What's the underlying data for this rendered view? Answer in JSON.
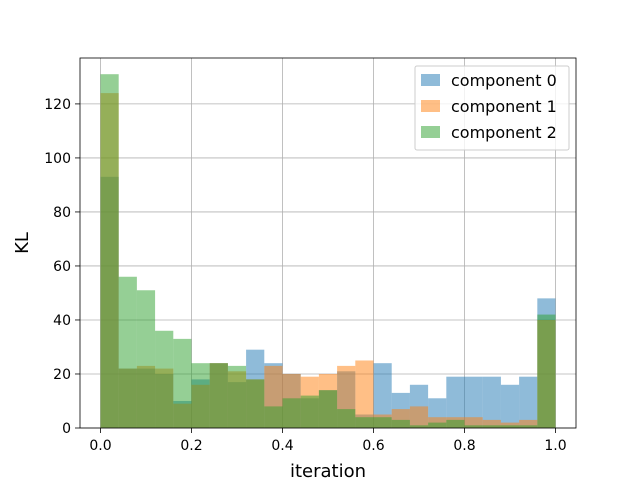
{
  "chart_data": {
    "type": "histogram",
    "xlabel": "iteration",
    "ylabel": "KL",
    "xlim": [
      -0.045,
      1.045
    ],
    "ylim": [
      0,
      137
    ],
    "bin_width": 0.04,
    "bin_starts": [
      0.0,
      0.04,
      0.08,
      0.12,
      0.16,
      0.2,
      0.24,
      0.28,
      0.32,
      0.36,
      0.4,
      0.44,
      0.48,
      0.52,
      0.56,
      0.6,
      0.64,
      0.68,
      0.72,
      0.76,
      0.8,
      0.84,
      0.88,
      0.92,
      0.96
    ],
    "x_ticks": [
      0.0,
      0.2,
      0.4,
      0.6,
      0.8,
      1.0
    ],
    "x_tick_labels": [
      "0.0",
      "0.2",
      "0.4",
      "0.6",
      "0.8",
      "1.0"
    ],
    "y_ticks": [
      0,
      20,
      40,
      60,
      80,
      100,
      120
    ],
    "y_tick_labels": [
      "0",
      "20",
      "40",
      "60",
      "80",
      "100",
      "120"
    ],
    "grid": true,
    "legend_position": "top-right",
    "series": [
      {
        "name": "component 0",
        "color": "#1f77b4",
        "values": [
          93,
          22,
          22,
          20,
          10,
          18,
          24,
          17,
          29,
          24,
          20,
          11,
          14,
          21,
          5,
          24,
          13,
          16,
          11,
          19,
          19,
          19,
          16,
          19,
          48
        ]
      },
      {
        "name": "component 1",
        "color": "#ff7f0e",
        "values": [
          124,
          22,
          23,
          22,
          9,
          16,
          24,
          21,
          18,
          23,
          20,
          19,
          20,
          23,
          25,
          5,
          7,
          8,
          4,
          4,
          4,
          3,
          2,
          3,
          40
        ]
      },
      {
        "name": "component 2",
        "color": "#2ca02c",
        "values": [
          131,
          56,
          51,
          36,
          33,
          24,
          24,
          23,
          18,
          8,
          11,
          12,
          14,
          7,
          4,
          4,
          3,
          1,
          2,
          3,
          1,
          1,
          1,
          1,
          42
        ]
      }
    ]
  }
}
